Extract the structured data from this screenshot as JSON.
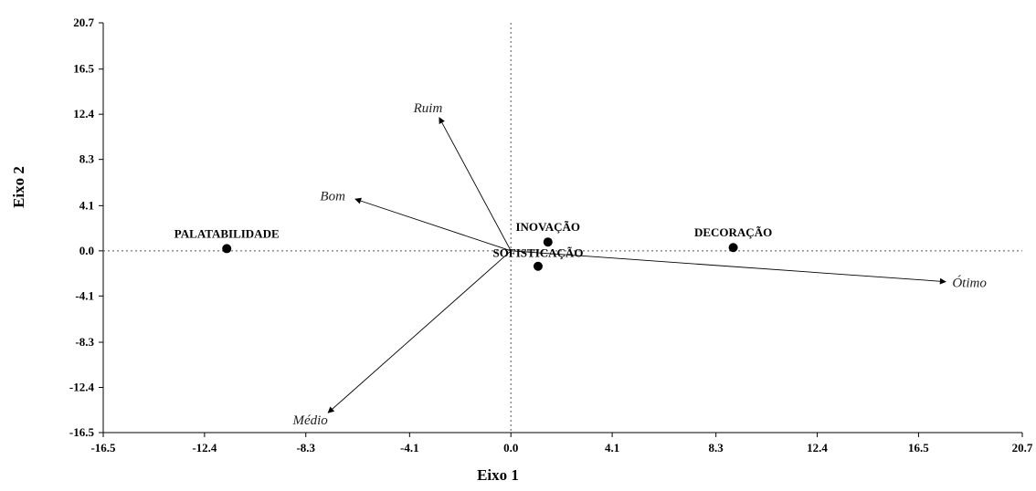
{
  "chart_data": {
    "type": "scatter",
    "title": "",
    "xlabel": "Eixo 1",
    "ylabel": "Eixo 2",
    "xlim": [
      -16.5,
      20.7
    ],
    "ylim": [
      -16.5,
      20.7
    ],
    "xticks": [
      "-16.5",
      "-12.4",
      "-8.3",
      "-4.1",
      "0.0",
      "4.1",
      "8.3",
      "12.4",
      "16.5",
      "20.7"
    ],
    "yticks": [
      "20.7",
      "16.5",
      "12.4",
      "8.3",
      "4.1",
      "0.0",
      "-4.1",
      "-8.3",
      "-12.4",
      "-16.5"
    ],
    "reference_lines": {
      "x0": true,
      "y0": true,
      "style": "dotted"
    },
    "points": [
      {
        "label": "PALATABILIDADE",
        "x": -11.5,
        "y": 0.2
      },
      {
        "label": "INOVAÇÃO",
        "x": 1.5,
        "y": 0.8
      },
      {
        "label": "SOFISTICAÇÃO",
        "x": 1.1,
        "y": -1.4
      },
      {
        "label": "DECORAÇÃO",
        "x": 9.0,
        "y": 0.3
      }
    ],
    "vectors": [
      {
        "label": "Ruim",
        "x": -2.9,
        "y": 12.1
      },
      {
        "label": "Bom",
        "x": -6.3,
        "y": 4.7
      },
      {
        "label": "Ótimo",
        "x": 17.6,
        "y": -2.8
      },
      {
        "label": "Médio",
        "x": -7.4,
        "y": -14.7
      }
    ]
  }
}
